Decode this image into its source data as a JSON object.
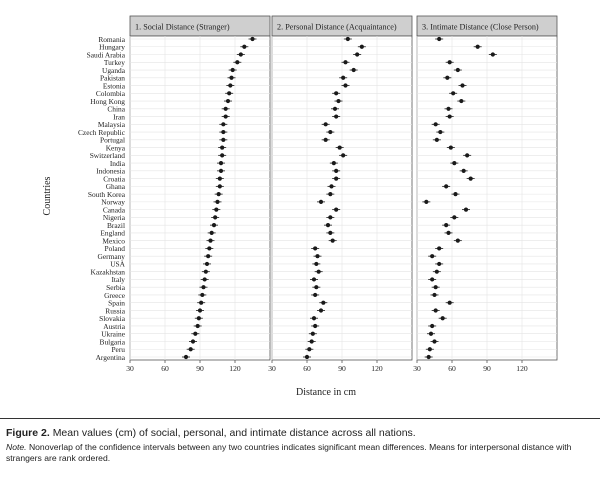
{
  "chart_data": {
    "type": "scatter",
    "ylabel": "Countries",
    "xlabel": "Distance in cm",
    "xlim": [
      30,
      150
    ],
    "xticks": [
      30,
      60,
      90,
      120
    ],
    "grid": true,
    "countries": [
      "Romania",
      "Hungary",
      "Saudi Arabia",
      "Turkey",
      "Uganda",
      "Pakistan",
      "Estonia",
      "Colombia",
      "Hong Kong",
      "China",
      "Iran",
      "Malaysia",
      "Czech Republic",
      "Portugal",
      "Kenya",
      "Switzerland",
      "India",
      "Indonesia",
      "Croatia",
      "Ghana",
      "South Korea",
      "Norway",
      "Canada",
      "Nigeria",
      "Brazil",
      "England",
      "Mexico",
      "Poland",
      "Germany",
      "USA",
      "Kazakhstan",
      "Italy",
      "Serbia",
      "Greece",
      "Spain",
      "Russia",
      "Slovakia",
      "Austria",
      "Ukraine",
      "Bulgaria",
      "Peru",
      "Argentina"
    ],
    "panels": [
      {
        "title": "1. Social Distance (Stranger)",
        "values": [
          135,
          128,
          125,
          122,
          118,
          117,
          116,
          115,
          114,
          112,
          112,
          110,
          110,
          110,
          109,
          109,
          108,
          108,
          107,
          107,
          106,
          105,
          104,
          103,
          102,
          100,
          99,
          98,
          97,
          96,
          95,
          94,
          93,
          92,
          91,
          90,
          89,
          88,
          86,
          84,
          82,
          78
        ]
      },
      {
        "title": "2. Personal Distance (Acquaintance)",
        "values": [
          95,
          107,
          103,
          93,
          100,
          91,
          93,
          85,
          87,
          84,
          85,
          76,
          80,
          76,
          88,
          91,
          83,
          85,
          85,
          81,
          80,
          72,
          85,
          80,
          78,
          80,
          82,
          67,
          69,
          68,
          70,
          66,
          68,
          67,
          74,
          72,
          66,
          67,
          65,
          64,
          62,
          60
        ]
      },
      {
        "title": "3. Intimate Distance (Close Person)",
        "values": [
          49,
          82,
          95,
          58,
          65,
          56,
          69,
          61,
          68,
          57,
          58,
          46,
          50,
          47,
          59,
          73,
          62,
          70,
          76,
          55,
          63,
          38,
          72,
          62,
          55,
          57,
          65,
          49,
          43,
          49,
          47,
          43,
          46,
          45,
          58,
          46,
          52,
          43,
          42,
          45,
          41,
          40
        ]
      }
    ]
  },
  "caption": {
    "label": "Figure 2.",
    "text": "Mean values (cm) of social, personal, and intimate distance across all nations.",
    "note_label": "Note.",
    "note_text": "Nonoverlap of the confidence intervals between any two countries indicates significant mean differences. Means for interpersonal distance with strangers are rank ordered."
  },
  "colors": {
    "panel_header": "#cfcfcf",
    "grid": "#e4e4e4",
    "point": "#1a1a1a",
    "frame": "#555555"
  }
}
